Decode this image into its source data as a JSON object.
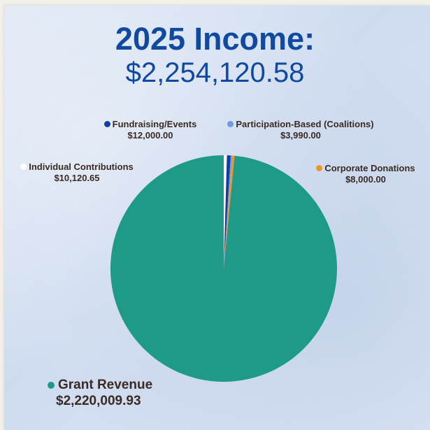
{
  "title": "2025 Income:",
  "subtitle": "$2,254,120.58",
  "chart_data": {
    "type": "pie",
    "title": "2025 Income:",
    "total": "$2,254,120.58",
    "slices": [
      {
        "name": "Grant Revenue",
        "value": 2220009.93,
        "amount_label": "$2,220,009.93",
        "color": "#1e9a88"
      },
      {
        "name": "Individual Contributions",
        "value": 10120.65,
        "amount_label": "$10,120.65",
        "color": "#ffffff"
      },
      {
        "name": "Fundraising/Events",
        "value": 12000.0,
        "amount_label": "$12,000.00",
        "color": "#0f3fa0"
      },
      {
        "name": "Participation-Based (Coalitions)",
        "value": 3990.0,
        "amount_label": "$3,990.00",
        "color": "#6a9ee0"
      },
      {
        "name": "Corporate Donations",
        "value": 8000.0,
        "amount_label": "$8,000.00",
        "color": "#f0952a"
      }
    ]
  }
}
